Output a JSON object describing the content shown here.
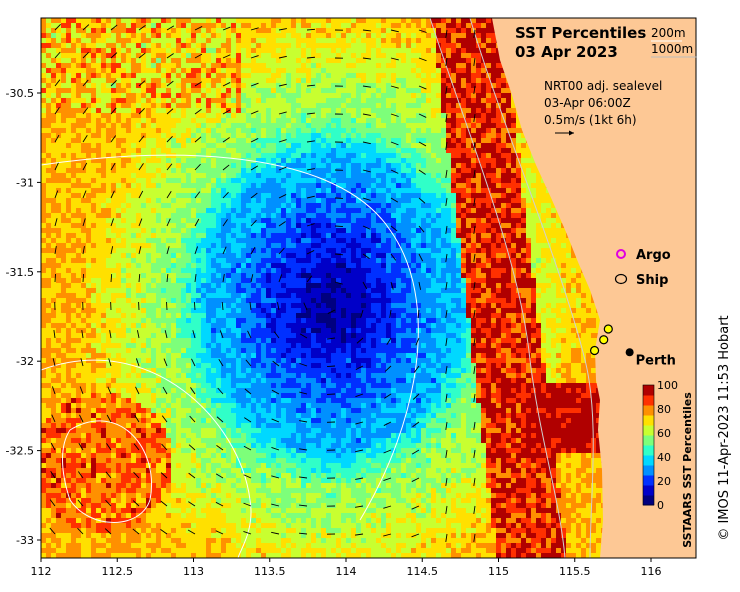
{
  "map": {
    "title_line1": "SST Percentiles",
    "title_line2": "03 Apr 2023",
    "contour_legend": [
      "200m",
      "1000m"
    ],
    "current_info": [
      "NRT00 adj. sealevel",
      "03-Apr 06:00Z",
      "0.5m/s (1kt 6h)"
    ],
    "markers": {
      "argo_label": "Argo",
      "ship_label": "Ship",
      "argo_color": "#e000e0"
    },
    "places": [
      {
        "name": "Perth",
        "lon": 115.86,
        "lat": -31.95
      }
    ],
    "ship_positions": [
      {
        "lon": 115.72,
        "lat": -31.82
      },
      {
        "lon": 115.69,
        "lat": -31.88
      },
      {
        "lon": 115.63,
        "lat": -31.94
      }
    ],
    "axes": {
      "x_ticks": [
        "112",
        "112.5",
        "113",
        "113.5",
        "114",
        "114.5",
        "115",
        "115.5",
        "116"
      ],
      "x_values": [
        112,
        112.5,
        113,
        113.5,
        114,
        114.5,
        115,
        115.5,
        116
      ],
      "y_ticks": [
        "-30.5",
        "-31",
        "-31.5",
        "-32",
        "-32.5",
        "-33"
      ],
      "y_values": [
        -30.5,
        -31,
        -31.5,
        -32,
        -32.5,
        -33
      ],
      "lon_range": [
        112,
        116.3
      ],
      "lat_range": [
        -33.1,
        -30.1
      ]
    },
    "colorbar": {
      "title": "SSTAARS SST Percentiles",
      "ticks": [
        "100",
        "80",
        "60",
        "40",
        "20",
        "0"
      ],
      "colors": [
        "#00007f",
        "#0000c8",
        "#0030ff",
        "#0090ff",
        "#00d8ff",
        "#30ffc8",
        "#7dff7a",
        "#c8ff30",
        "#ffe000",
        "#ff9000",
        "#ff3000",
        "#b00000"
      ]
    },
    "land_color": "#fdc895",
    "credit": "© IMOS 11-Apr-2023 11:53 Hobart"
  }
}
